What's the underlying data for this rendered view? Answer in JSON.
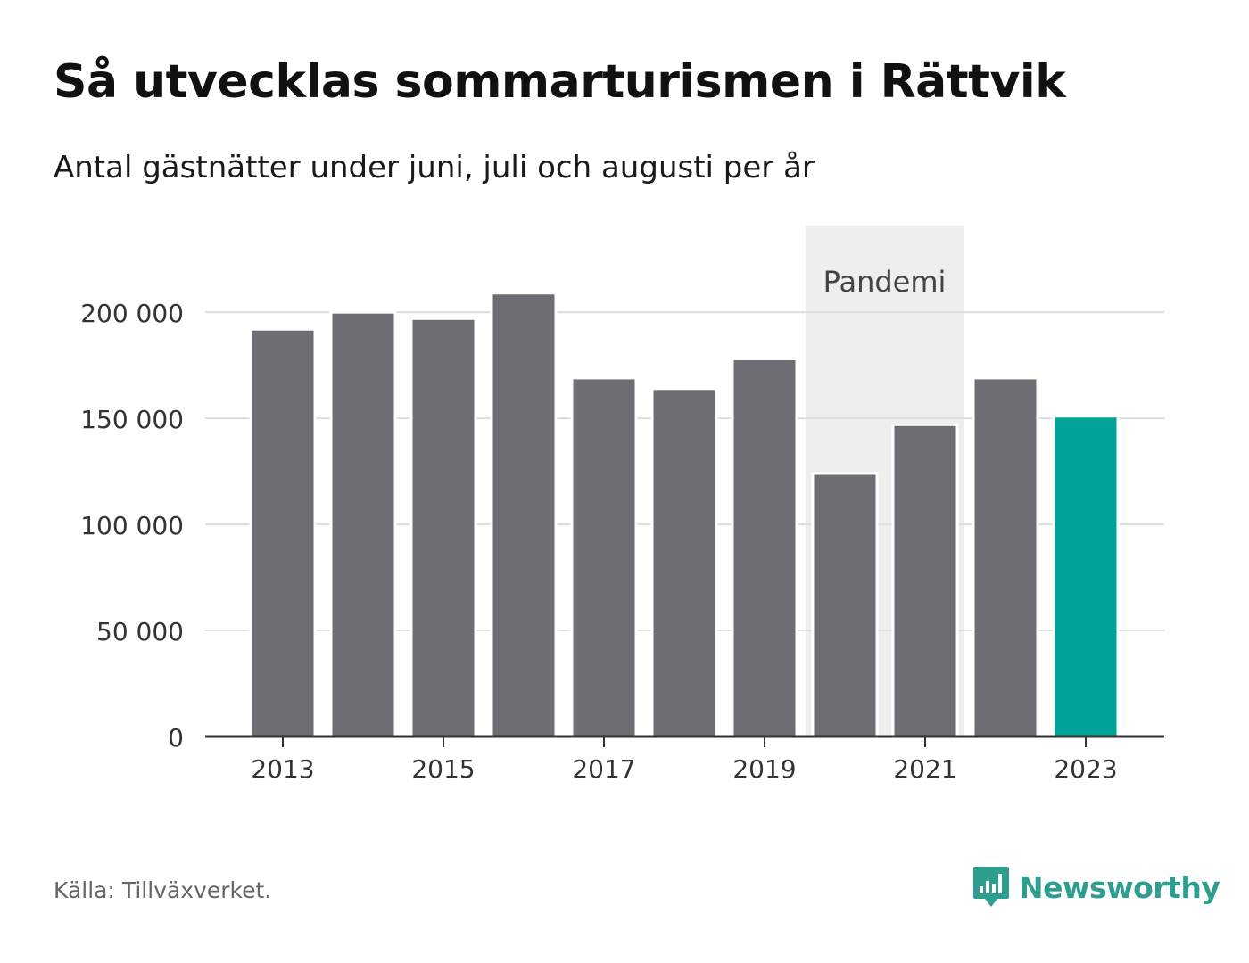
{
  "header": {
    "title": "Så utvecklas sommarturismen i Rättvik",
    "subtitle": "Antal gästnätter under juni, juli och augusti per år"
  },
  "chart_data": {
    "type": "bar",
    "categories": [
      "2013",
      "2014",
      "2015",
      "2016",
      "2017",
      "2018",
      "2019",
      "2020",
      "2021",
      "2022",
      "2023"
    ],
    "values": [
      192000,
      200000,
      197000,
      209000,
      169000,
      164000,
      178000,
      124000,
      147000,
      169000,
      151000
    ],
    "x_tick_labels": [
      "2013",
      "2015",
      "2017",
      "2019",
      "2021",
      "2023"
    ],
    "y_ticks": [
      0,
      50000,
      100000,
      150000,
      200000
    ],
    "y_tick_labels": [
      "0",
      "50 000",
      "100 000",
      "150 000",
      "200 000"
    ],
    "ylim": [
      0,
      240000
    ],
    "grid": true,
    "bar_color": "#6e6d73",
    "highlight_color": "#00a398",
    "highlight_category": "2023",
    "annotation": {
      "label": "Pandemi",
      "from_category": "2020",
      "to_category": "2021",
      "color": "#eeeeee"
    }
  },
  "footer": {
    "source": "Källa: Tillväxverket.",
    "brand": "Newsworthy",
    "brand_icon": "bar-chart-speech-bubble-icon",
    "brand_color": "#2e9e8f"
  }
}
